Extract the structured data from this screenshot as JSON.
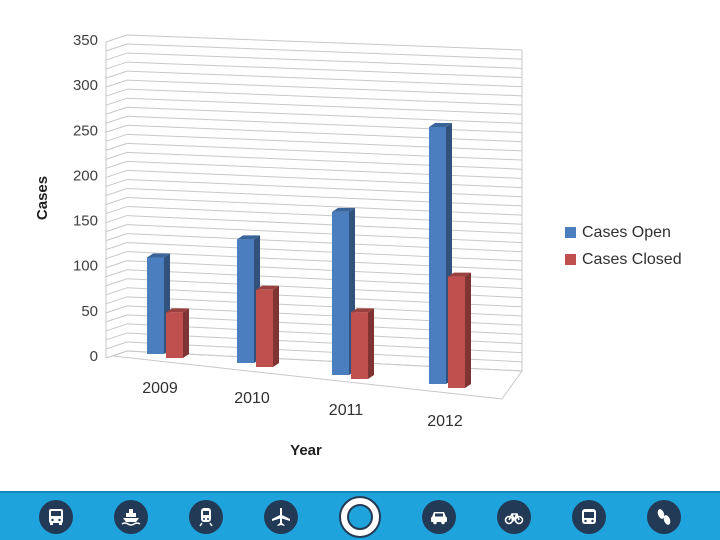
{
  "chart_data": {
    "type": "bar",
    "categories": [
      "2009",
      "2010",
      "2011",
      "2012"
    ],
    "series": [
      {
        "name": "Cases Open",
        "values": [
          110,
          141,
          186,
          293
        ],
        "color": "#4a7ebf"
      },
      {
        "name": "Cases Closed",
        "values": [
          52,
          88,
          76,
          127
        ],
        "color": "#c0504d"
      }
    ],
    "ylabel": "Cases",
    "xlabel": "Year",
    "ylim": [
      0,
      350
    ],
    "yticks": [
      "0",
      "50",
      "100",
      "150",
      "200",
      "250",
      "300",
      "350"
    ],
    "grid": true,
    "legend": "right"
  },
  "footer": {
    "icons": [
      "bus-icon",
      "ferry-icon",
      "train-icon",
      "airplane-icon",
      "department-seal-icon",
      "car-icon",
      "bicycle-icon",
      "bus-front-icon",
      "footprints-icon"
    ]
  }
}
